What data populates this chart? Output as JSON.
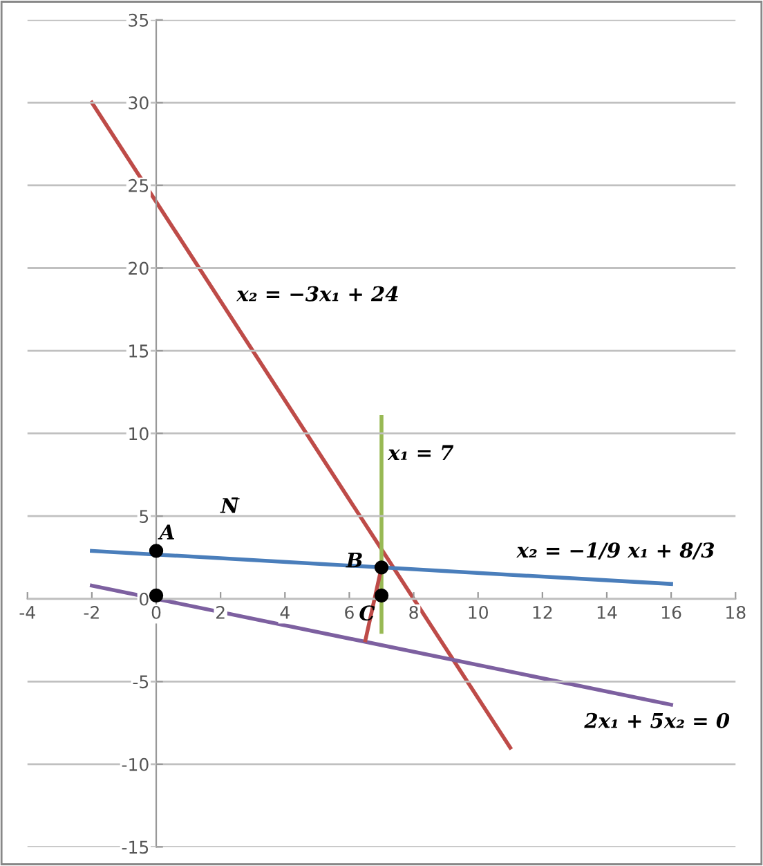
{
  "chart_data": {
    "type": "line",
    "xlim": [
      -4,
      18
    ],
    "ylim": [
      -15,
      35
    ],
    "xticks": [
      -4,
      -2,
      0,
      2,
      4,
      6,
      8,
      10,
      12,
      14,
      16,
      18
    ],
    "yticks": [
      -15,
      -10,
      -5,
      0,
      5,
      10,
      15,
      20,
      25,
      30,
      35
    ],
    "grid": "y",
    "marker": "none",
    "line_style": "solid",
    "series": [
      {
        "color": "#be4b48",
        "x": [
          -2,
          11
        ],
        "values": [
          30,
          -9
        ]
      },
      {
        "color": "#4a7ebb",
        "x": [
          -2,
          16
        ],
        "values": [
          2.9,
          0.9
        ]
      },
      {
        "color": "#7d60a0",
        "x": [
          -2,
          16
        ],
        "values": [
          0.8,
          -6.4
        ]
      },
      {
        "color": "#98b954",
        "x": [
          7,
          7
        ],
        "values": [
          -2,
          11
        ]
      },
      {
        "color": "#be4b48",
        "x": [
          6.5,
          7
        ],
        "values": [
          -2.5,
          1.9
        ]
      },
      {
        "type": "scatter",
        "marker": "circle",
        "color": "#000000",
        "x": [
          0,
          0,
          7,
          7
        ],
        "values": [
          2.9,
          0.2,
          1.9,
          0.2
        ]
      }
    ],
    "annotations": [
      "x₂ = −3x₁ + 24",
      "x₁ = 7",
      "x₂ = −1/9 x₁ + 8/3",
      "2x₁ + 5x₂ = 0",
      "A",
      "B",
      "C",
      "N̄"
    ]
  }
}
